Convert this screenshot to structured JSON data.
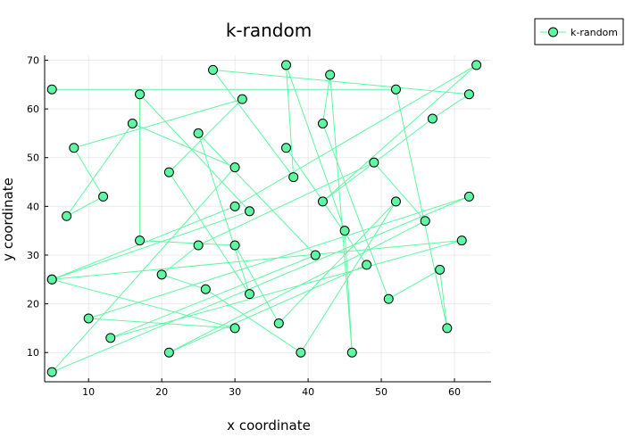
{
  "chart_data": {
    "type": "line",
    "title": "k-random",
    "xlabel": "x coordinate",
    "ylabel": "y coordinate",
    "xlim": [
      4,
      65
    ],
    "ylim": [
      4,
      71
    ],
    "xticks": [
      10,
      20,
      30,
      40,
      50,
      60
    ],
    "yticks": [
      10,
      20,
      30,
      40,
      50,
      60,
      70
    ],
    "grid": true,
    "legend_position": "top-right",
    "series": [
      {
        "name": "k-random",
        "color": "#5ef7a4",
        "marker": "circle",
        "x": [
          5,
          52,
          59,
          58,
          51,
          42,
          43,
          46,
          45,
          37,
          38,
          27,
          62,
          57,
          42,
          63,
          30,
          5,
          61,
          13,
          41,
          25,
          32,
          21,
          31,
          8,
          12,
          7,
          16,
          30,
          5,
          62,
          10,
          30,
          5,
          32,
          17,
          17,
          30,
          36,
          52,
          39,
          26,
          20,
          25,
          49,
          56,
          21,
          48,
          37
        ],
        "y": [
          64,
          64,
          15,
          27,
          21,
          57,
          67,
          10,
          35,
          69,
          46,
          68,
          63,
          58,
          41,
          69,
          40,
          25,
          33,
          13,
          30,
          55,
          22,
          47,
          62,
          52,
          42,
          38,
          57,
          48,
          6,
          42,
          17,
          15,
          25,
          39,
          63,
          33,
          32,
          16,
          41,
          10,
          23,
          26,
          32,
          49,
          37,
          10,
          28,
          52
        ]
      }
    ]
  },
  "legend": {
    "entries": [
      "k-random"
    ]
  }
}
